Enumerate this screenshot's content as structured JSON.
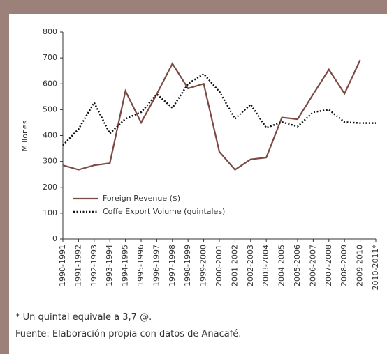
{
  "chart_data": {
    "type": "line",
    "y_label": "Millones",
    "categories": [
      "1990-1991",
      "1991-1992",
      "1992-1993",
      "1993-1994",
      "1994-1995",
      "1995-1996",
      "1996-1997",
      "1997-1998",
      "1998-1999",
      "1999-2000",
      "2000-2001",
      "2001-2002",
      "2002-2003",
      "2003-2004",
      "2004-2005",
      "2005-2006",
      "2006-2007",
      "2007-2008",
      "2008-2009",
      "2009-2010",
      "2010-2011*"
    ],
    "series": [
      {
        "name": "Foreign Revenue ($)",
        "color": "#7a4a44",
        "dash": "solid",
        "values": [
          285,
          268,
          285,
          293,
          572,
          450,
          560,
          678,
          582,
          600,
          337,
          268,
          308,
          315,
          470,
          463,
          560,
          655,
          562,
          692,
          null
        ]
      },
      {
        "name": "Coffe Export Volume (quintales)",
        "color": "#111111",
        "dash": "dotted",
        "values": [
          362,
          425,
          527,
          408,
          465,
          490,
          560,
          507,
          600,
          638,
          570,
          465,
          520,
          430,
          452,
          435,
          490,
          500,
          452,
          448,
          448
        ]
      }
    ],
    "ylim": [
      0,
      800
    ],
    "yticks": [
      0,
      100,
      200,
      300,
      400,
      500,
      600,
      700,
      800
    ],
    "legend": "lower left",
    "notes": [
      "* Un quintal equivale a 3,7 @.",
      "Fuente: Elaboración propia con datos de Anacafé."
    ]
  }
}
